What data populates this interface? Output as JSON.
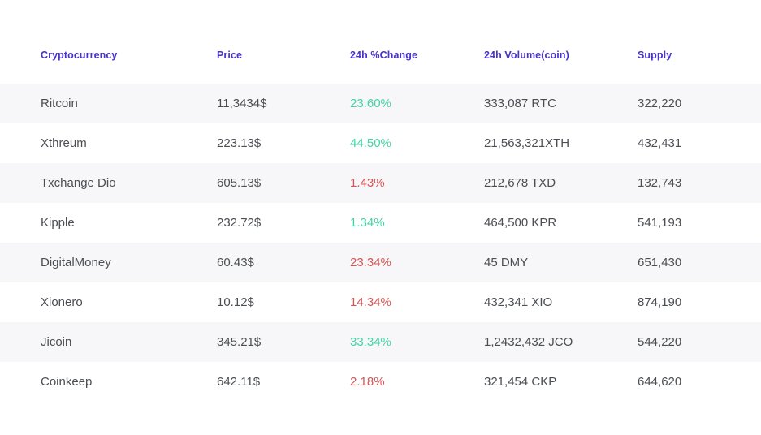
{
  "table": {
    "columns": [
      {
        "label": "Cryptocurrency"
      },
      {
        "label": "Price"
      },
      {
        "label": "24h %Change"
      },
      {
        "label": "24h Volume(coin)"
      },
      {
        "label": "Supply"
      }
    ],
    "rows": [
      {
        "name": "Ritcoin",
        "price": "11,3434$",
        "change": "23.60%",
        "change_direction": "up",
        "volume": "333,087 RTC",
        "supply": "322,220"
      },
      {
        "name": "Xthreum",
        "price": "223.13$",
        "change": "44.50%",
        "change_direction": "up",
        "volume": "21,563,321XTH",
        "supply": "432,431"
      },
      {
        "name": "Txchange Dio",
        "price": "605.13$",
        "change": "1.43%",
        "change_direction": "down",
        "volume": "212,678 TXD",
        "supply": "132,743"
      },
      {
        "name": "Kipple",
        "price": "232.72$",
        "change": "1.34%",
        "change_direction": "up",
        "volume": "464,500 KPR",
        "supply": "541,193"
      },
      {
        "name": "DigitalMoney",
        "price": "60.43$",
        "change": "23.34%",
        "change_direction": "down",
        "volume": "45 DMY",
        "supply": "651,430"
      },
      {
        "name": "Xionero",
        "price": "10.12$",
        "change": "14.34%",
        "change_direction": "down",
        "volume": "432,341 XIO",
        "supply": "874,190"
      },
      {
        "name": "Jicoin",
        "price": "345.21$",
        "change": "33.34%",
        "change_direction": "up",
        "volume": "1,2432,432 JCO",
        "supply": "544,220"
      },
      {
        "name": "Coinkeep",
        "price": "642.11$",
        "change": "2.18%",
        "change_direction": "down",
        "volume": "321,454 CKP",
        "supply": "644,620"
      }
    ]
  },
  "colors": {
    "header_text": "#4733cb",
    "positive": "#3fd6a3",
    "negative": "#d85454",
    "row_stripe": "#f7f7f9",
    "body_text": "#4b4e53"
  }
}
